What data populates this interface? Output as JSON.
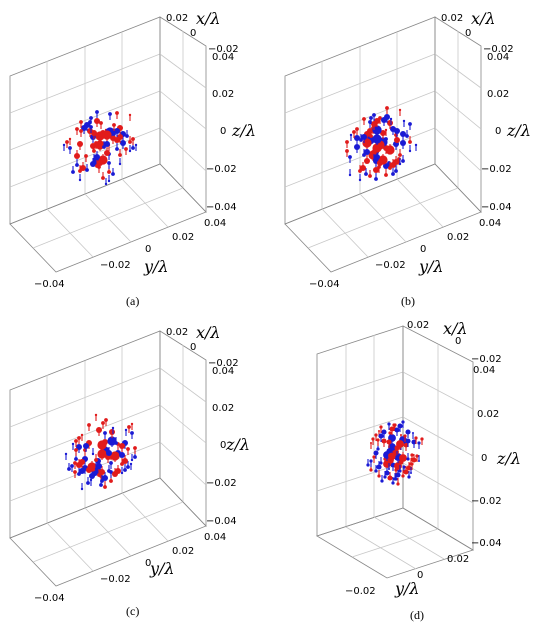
{
  "colors": {
    "positive": "#e11b1b",
    "negative": "#1a1ad4",
    "grid": "#c8c8c8"
  },
  "chart_data": [
    {
      "type": "scatter3d",
      "caption": "(a)",
      "xlabel": "x/λ",
      "ylabel": "y/λ",
      "zlabel": "z/λ",
      "x_ticks": [
        "0.02",
        "0",
        "−0.02"
      ],
      "y_ticks": [
        "−0.04",
        "−0.02",
        "0",
        "0.02",
        "0.04"
      ],
      "z_ticks": [
        "0.04",
        "0.02",
        "0",
        "−0.02",
        "−0.04"
      ],
      "xlim": [
        -0.02,
        0.02
      ],
      "ylim": [
        -0.04,
        0.04
      ],
      "zlim": [
        -0.04,
        0.04
      ],
      "grid": true
    },
    {
      "type": "scatter3d",
      "caption": "(b)",
      "xlabel": "x/λ",
      "ylabel": "y/λ",
      "zlabel": "z/λ",
      "x_ticks": [
        "0.02",
        "0",
        "−0.02"
      ],
      "y_ticks": [
        "−0.04",
        "−0.02",
        "0",
        "0.02",
        "0.04"
      ],
      "z_ticks": [
        "0.04",
        "0.02",
        "0",
        "−0.02",
        "−0.04"
      ],
      "xlim": [
        -0.02,
        0.02
      ],
      "ylim": [
        -0.04,
        0.04
      ],
      "zlim": [
        -0.04,
        0.04
      ],
      "grid": true
    },
    {
      "type": "scatter3d",
      "caption": "(c)",
      "xlabel": "x/λ",
      "ylabel": "y/λ",
      "zlabel": "z/λ",
      "x_ticks": [
        "0.02",
        "0",
        "−0.02"
      ],
      "y_ticks": [
        "−0.04",
        "−0.02",
        "0",
        "0.02",
        "0.04"
      ],
      "z_ticks": [
        "0.04",
        "0.02",
        "0",
        "−0.02",
        "−0.04"
      ],
      "xlim": [
        -0.02,
        0.02
      ],
      "ylim": [
        -0.04,
        0.04
      ],
      "zlim": [
        -0.04,
        0.04
      ],
      "grid": true
    },
    {
      "type": "scatter3d",
      "caption": "(d)",
      "xlabel": "x/λ",
      "ylabel": "y/λ",
      "zlabel": "z/λ",
      "x_ticks": [
        "0.02",
        "0",
        "−0.02"
      ],
      "y_ticks": [
        "−0.02",
        "0",
        "0.02"
      ],
      "z_ticks": [
        "0.04",
        "0.02",
        "0",
        "−0.02",
        "−0.04"
      ],
      "xlim": [
        -0.02,
        0.02
      ],
      "ylim": [
        -0.02,
        0.02
      ],
      "zlim": [
        -0.04,
        0.04
      ],
      "grid": true
    }
  ]
}
